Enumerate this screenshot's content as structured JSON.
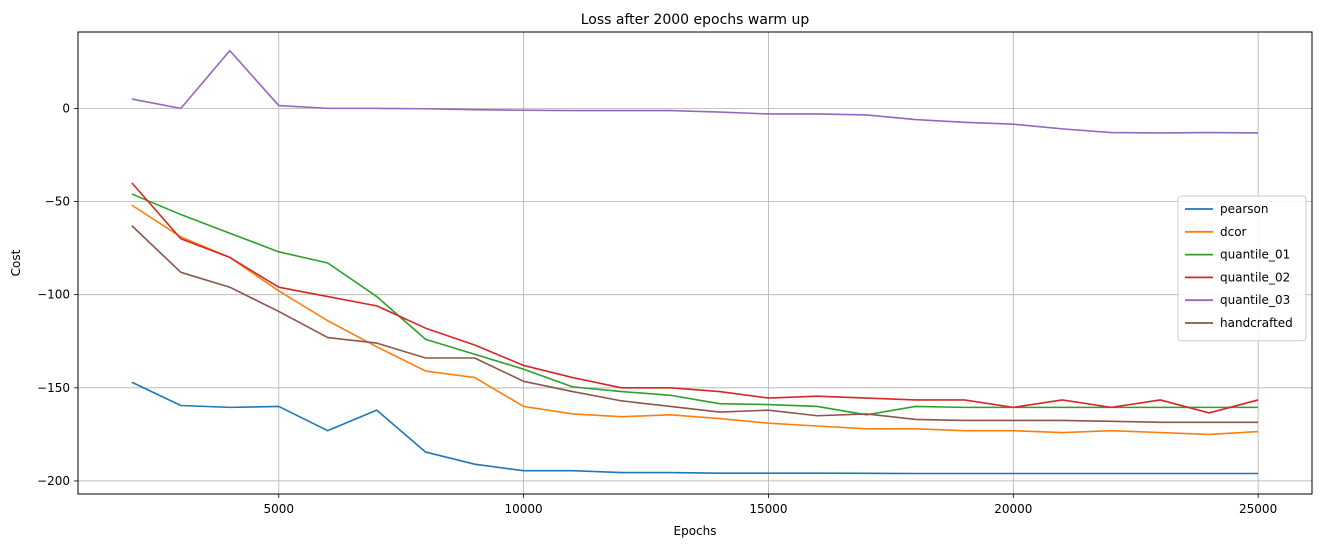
{
  "chart_data": {
    "type": "line",
    "title": "Loss after 2000 epochs warm up",
    "xlabel": "Epochs",
    "ylabel": "Cost",
    "xlim": [
      900,
      26100
    ],
    "ylim": [
      -207,
      41
    ],
    "xticks": [
      5000,
      10000,
      15000,
      20000,
      25000
    ],
    "yticks": [
      -200,
      -150,
      -100,
      -50,
      0
    ],
    "ytick_labels": [
      "−200",
      "−150",
      "−100",
      "−50",
      "0"
    ],
    "grid": true,
    "legend_position": "center-right",
    "x": [
      2000,
      3000,
      4000,
      5000,
      6000,
      7000,
      8000,
      9000,
      10000,
      11000,
      12000,
      13000,
      14000,
      15000,
      16000,
      17000,
      18000,
      19000,
      20000,
      21000,
      22000,
      23000,
      24000,
      25000
    ],
    "series": [
      {
        "name": "pearson",
        "color": "#1f77b4",
        "values": [
          -147,
          -159.5,
          -160.5,
          -160,
          -173,
          -162,
          -184.5,
          -191,
          -194.5,
          -194.5,
          -195.5,
          -195.5,
          -195.8,
          -195.8,
          -195.8,
          -195.9,
          -196,
          -196,
          -196,
          -196,
          -196,
          -196,
          -196,
          -196
        ]
      },
      {
        "name": "dcor",
        "color": "#ff7f0e",
        "values": [
          -52,
          -69,
          -80,
          -98,
          -114,
          -128,
          -141,
          -144.5,
          -160,
          -164,
          -165.5,
          -164.5,
          -166.5,
          -169,
          -170.5,
          -172,
          -172,
          -173,
          -173,
          -174,
          -173,
          -174,
          -175,
          -173.5
        ]
      },
      {
        "name": "quantile_01",
        "color": "#2ca02c",
        "values": [
          -46,
          -57,
          -67,
          -77,
          -83,
          -101,
          -124,
          -132,
          -140,
          -149.5,
          -152,
          -154,
          -158.5,
          -159,
          -160,
          -164.5,
          -160,
          -160.5,
          -160.5,
          -160.5,
          -160.5,
          -160.5,
          -160.5,
          -160.5
        ]
      },
      {
        "name": "quantile_02",
        "color": "#d62728",
        "values": [
          -40,
          -70,
          -80,
          -96,
          -101,
          -106,
          -118,
          -127,
          -138,
          -144.5,
          -150,
          -150,
          -152,
          -155.5,
          -154.5,
          -155.5,
          -156.5,
          -156.5,
          -160.5,
          -156.5,
          -160.5,
          -156.5,
          -163.5,
          -156.5
        ]
      },
      {
        "name": "quantile_03",
        "color": "#9467bd",
        "values": [
          5,
          0,
          31,
          1.5,
          0,
          0,
          -0.2,
          -0.7,
          -1,
          -1.2,
          -1.2,
          -1.2,
          -2,
          -3,
          -3,
          -3.5,
          -6,
          -7.5,
          -8.5,
          -11,
          -13,
          -13.2,
          -13,
          -13.2
        ]
      },
      {
        "name": "handcrafted",
        "color": "#8c564b",
        "values": [
          -63,
          -88,
          -96,
          -109,
          -123,
          -126,
          -134,
          -134,
          -146.5,
          -152,
          -157,
          -160,
          -163,
          -162,
          -165,
          -164,
          -167,
          -167.5,
          -167.5,
          -167.5,
          -168,
          -168.5,
          -168.5,
          -168.5
        ]
      }
    ]
  }
}
